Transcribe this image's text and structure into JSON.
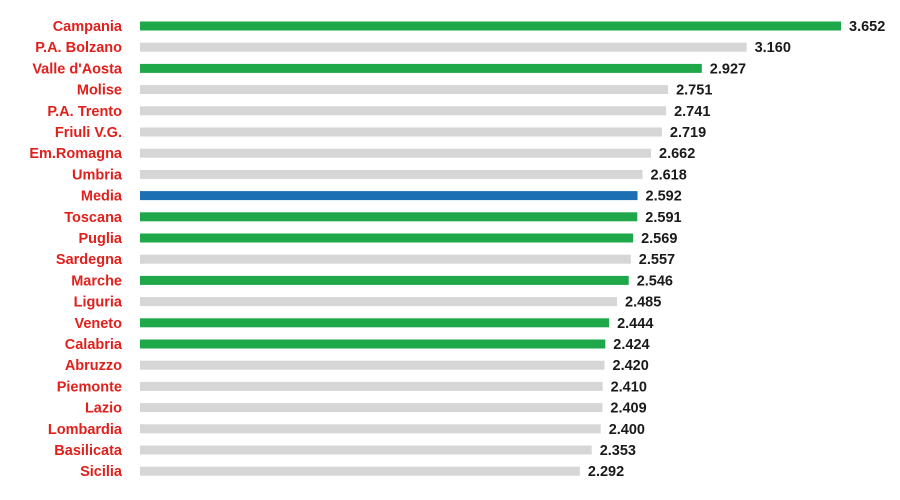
{
  "chart_data": {
    "type": "bar",
    "orientation": "horizontal",
    "title": "",
    "xlabel": "",
    "ylabel": "",
    "grid": false,
    "legend": "none",
    "xlim": [
      0,
      3.652
    ],
    "categories": [
      "Campania",
      "P.A. Bolzano",
      "Valle d'Aosta",
      "Molise",
      "P.A. Trento",
      "Friuli V.G.",
      "Em.Romagna",
      "Umbria",
      "Media",
      "Toscana",
      "Puglia",
      "Sardegna",
      "Marche",
      "Liguria",
      "Veneto",
      "Calabria",
      "Abruzzo",
      "Piemonte",
      "Lazio",
      "Lombardia",
      "Basilicata",
      "Sicilia"
    ],
    "values": [
      3.652,
      3.16,
      2.927,
      2.751,
      2.741,
      2.719,
      2.662,
      2.618,
      2.592,
      2.591,
      2.569,
      2.557,
      2.546,
      2.485,
      2.444,
      2.424,
      2.42,
      2.41,
      2.409,
      2.4,
      2.353,
      2.292
    ],
    "value_labels": [
      "3.652",
      "3.160",
      "2.927",
      "2.751",
      "2.741",
      "2.719",
      "2.662",
      "2.618",
      "2.592",
      "2.591",
      "2.569",
      "2.557",
      "2.546",
      "2.485",
      "2.444",
      "2.424",
      "2.420",
      "2.410",
      "2.409",
      "2.400",
      "2.353",
      "2.292"
    ],
    "bar_colors": [
      "#1fa84a",
      "#d6d6d6",
      "#1fa84a",
      "#d6d6d6",
      "#d6d6d6",
      "#d6d6d6",
      "#d6d6d6",
      "#d6d6d6",
      "#1c6fb3",
      "#1fa84a",
      "#1fa84a",
      "#d6d6d6",
      "#1fa84a",
      "#d6d6d6",
      "#1fa84a",
      "#1fa84a",
      "#d6d6d6",
      "#d6d6d6",
      "#d6d6d6",
      "#d6d6d6",
      "#d6d6d6",
      "#d6d6d6"
    ],
    "category_label_color": "#e0201c",
    "value_label_color": "#1a1a1a"
  }
}
